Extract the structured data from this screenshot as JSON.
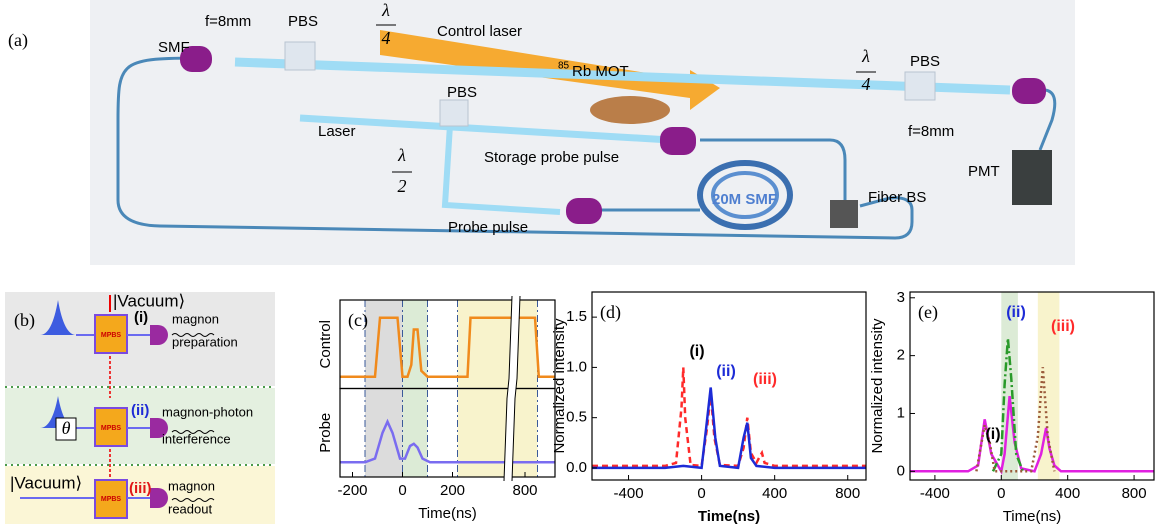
{
  "diagram_a": {
    "label": "(a)",
    "smf_left": "SMF",
    "lens_left": "f=8mm",
    "pbs_left": "PBS",
    "qwp_left": {
      "numerator": "λ",
      "denominator": "4"
    },
    "control_laser": "Control laser",
    "mot_isotope": "85",
    "mot": "Rb  MOT",
    "qwp_right": {
      "numerator": "λ",
      "denominator": "4"
    },
    "pbs_right": "PBS",
    "lens_right": "f=8mm",
    "pmt": "PMT",
    "laser": "Laser",
    "pbs_mid": "PBS",
    "hwp": {
      "numerator": "λ",
      "denominator": "2"
    },
    "storage_probe": "Storage probe pulse",
    "fiber_coil": "20M SMF",
    "fiber_bs": "Fiber BS",
    "probe_pulse": "Probe pulse"
  },
  "diagram_b": {
    "label": "(b)",
    "vacuum_top": "|Vacuum⟩",
    "mpbs_1": "MPBS",
    "step_1": "(i)",
    "step_1_line1": "magnon",
    "step_1_line2": "preparation",
    "theta": "θ",
    "mpbs_2": "MPBS",
    "step_2": "(ii)",
    "step_2_line1": "magnon-photon",
    "step_2_line2": "interference",
    "vacuum_bottom": "|Vacuum⟩",
    "mpbs_3": "MPBS",
    "step_3": "(iii)",
    "step_3_line1": "magnon",
    "step_3_line2": "readout"
  },
  "chart_data": [
    {
      "type": "line",
      "label": "(c)",
      "xlabel": "Time(ns)",
      "xlim": [
        -250,
        920
      ],
      "xbreak": [
        430,
        740
      ],
      "xticks": [
        -200,
        0,
        200,
        800
      ],
      "region_edges": true,
      "regions": [
        {
          "x0": -150,
          "x1": 0,
          "color": "#dcdcdc"
        },
        {
          "x0": 0,
          "x1": 100,
          "color": "#dcebd6"
        },
        {
          "x0": 220,
          "x1": 850,
          "color": "#f8f3cc"
        }
      ],
      "panels": [
        {
          "ylabel": "Control",
          "ylim": [
            -0.2,
            1.3
          ],
          "series": [
            {
              "color": "#f08a1c",
              "dash": "solid",
              "x": [
                -250,
                -160,
                -110,
                -90,
                -20,
                0,
                20,
                35,
                45,
                60,
                75,
                100,
                180,
                260,
                272,
                840,
                855,
                920
              ],
              "values": [
                0,
                0,
                0,
                1,
                1,
                0,
                0,
                0.2,
                0.8,
                0.8,
                0.1,
                0,
                0,
                0,
                1,
                1,
                0,
                0
              ]
            }
          ]
        },
        {
          "ylabel": "Probe",
          "ylim": [
            -0.2,
            1.0
          ],
          "series": [
            {
              "color": "#7a6cf0",
              "dash": "solid",
              "x": [
                -250,
                -150,
                -110,
                -80,
                -60,
                -40,
                -10,
                10,
                30,
                45,
                60,
                80,
                110,
                200,
                430,
                740,
                920
              ],
              "values": [
                0,
                0,
                0.05,
                0.4,
                0.55,
                0.4,
                0.05,
                0.05,
                0.22,
                0.25,
                0.2,
                0.05,
                0,
                0,
                0,
                0,
                0
              ]
            }
          ]
        }
      ]
    },
    {
      "type": "line",
      "label": "(d)",
      "xlabel": "Time(ns)",
      "ylabel": "Normalized intensity",
      "xlim": [
        -600,
        900
      ],
      "ylim": [
        -0.12,
        1.75
      ],
      "xticks": [
        -400,
        0,
        400,
        800
      ],
      "yticks": [
        {
          "value": 0,
          "label": "0.0"
        },
        {
          "value": 0.5,
          "label": "0.5"
        },
        {
          "value": 1,
          "label": "1.0"
        },
        {
          "value": 1.5,
          "label": "1.5"
        }
      ],
      "series": [
        {
          "color": "#ff2a2a",
          "dash": "dashed",
          "x": [
            -600,
            -200,
            -140,
            -110,
            -100,
            -90,
            -60,
            0,
            30,
            50,
            70,
            100,
            200,
            230,
            250,
            270,
            300,
            320,
            330,
            345,
            400,
            600,
            900
          ],
          "values": [
            0.02,
            0.02,
            0.05,
            0.6,
            1.0,
            0.5,
            0.03,
            0.02,
            0.4,
            0.75,
            0.3,
            0.03,
            0.02,
            0.2,
            0.5,
            0.15,
            0.05,
            0.12,
            0.15,
            0.05,
            0.02,
            0.02,
            0.02
          ]
        },
        {
          "color": "#1d2bd6",
          "dash": "solid",
          "x": [
            -600,
            -200,
            -100,
            0,
            25,
            50,
            75,
            100,
            200,
            230,
            250,
            270,
            300,
            400,
            600,
            900
          ],
          "values": [
            0,
            0,
            0.02,
            0,
            0.4,
            0.8,
            0.3,
            0.02,
            0,
            0.3,
            0.45,
            0.1,
            0.02,
            0,
            0,
            0
          ]
        }
      ],
      "annotations": [
        {
          "text": "(i)",
          "color": "#000000"
        },
        {
          "text": "(ii)",
          "color": "#1d2bd6"
        },
        {
          "text": "(iii)",
          "color": "#ff2a2a"
        }
      ]
    },
    {
      "type": "line",
      "label": "(e)",
      "xlabel": "Time(ns)",
      "ylabel": "Normalized intensity",
      "xlim": [
        -550,
        920
      ],
      "ylim": [
        -0.15,
        3.1
      ],
      "xticks": [
        -400,
        0,
        400,
        800
      ],
      "yticks": [
        0,
        1,
        2,
        3
      ],
      "regions": [
        {
          "x0": 0,
          "x1": 100,
          "color": "#dcebd6"
        },
        {
          "x0": 220,
          "x1": 350,
          "color": "#f8f3cc"
        }
      ],
      "series": [
        {
          "color": "#e020e0",
          "dash": "solid",
          "x": [
            -550,
            -200,
            -140,
            -100,
            -60,
            0,
            20,
            50,
            80,
            120,
            200,
            240,
            270,
            290,
            320,
            360,
            400,
            600,
            920
          ],
          "values": [
            0,
            0,
            0.1,
            0.9,
            0.3,
            0,
            0.3,
            1.3,
            0.5,
            0.05,
            0,
            0.3,
            0.75,
            0.4,
            0.1,
            0,
            0,
            0,
            0
          ]
        },
        {
          "color": "#2a9a2a",
          "dash": "dashdot",
          "x": [
            -50,
            0,
            20,
            40,
            60,
            90,
            130
          ],
          "values": [
            0,
            0.3,
            1.5,
            2.3,
            1.6,
            0.3,
            0
          ]
        },
        {
          "color": "#9a5a3a",
          "dash": "dotted",
          "x": [
            -150,
            -100,
            -70,
            -40,
            180,
            220,
            250,
            280,
            320
          ],
          "values": [
            0,
            0.8,
            0.5,
            0,
            0,
            0.6,
            1.8,
            0.6,
            0
          ]
        }
      ],
      "annotations": [
        {
          "text": "(i)",
          "color": "#000000"
        },
        {
          "text": "(ii)",
          "color": "#1d2bd6"
        },
        {
          "text": "(iii)",
          "color": "#ff2a2a"
        }
      ]
    }
  ]
}
